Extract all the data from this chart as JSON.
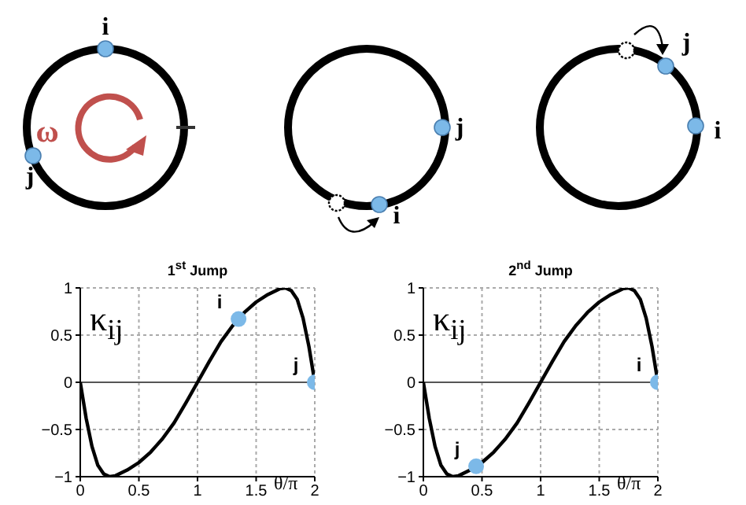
{
  "chart_data": [
    {
      "type": "other",
      "annotations": [
        "i",
        "j",
        "ω",
        "j",
        "i",
        "j",
        "i"
      ]
    },
    {
      "type": "line",
      "title": "1$^{st}$ Jump",
      "xlabel": "θ/π",
      "ylabel": "κ$_{ij}$",
      "xlim": [
        0,
        2
      ],
      "ylim": [
        -1,
        1
      ],
      "xticks": [
        0,
        0.5,
        1,
        1.5,
        2
      ],
      "yticks": [
        -1,
        -0.5,
        0,
        0.5,
        1
      ],
      "grid": true,
      "line_style": "solid",
      "ref_lines": [
        {
          "axis": "y",
          "value": 0,
          "color": "#555555"
        }
      ],
      "x": [
        0,
        0.05,
        0.1,
        0.15,
        0.2,
        0.25,
        0.3,
        0.4,
        0.5,
        0.6,
        0.65,
        0.7,
        0.8,
        0.9,
        1,
        1.1,
        1.2,
        1.3,
        1.35,
        1.4,
        1.5,
        1.6,
        1.7,
        1.75,
        1.8,
        1.85,
        1.9,
        1.95,
        2
      ],
      "series": [
        {
          "type": "line",
          "color": "#000000",
          "marker": "none",
          "values": [
            0,
            -0.38,
            -0.68,
            -0.88,
            -0.97,
            -1,
            -0.99,
            -0.93,
            -0.85,
            -0.74,
            -0.67,
            -0.6,
            -0.43,
            -0.22,
            0,
            0.22,
            0.43,
            0.6,
            0.67,
            0.74,
            0.85,
            0.93,
            0.99,
            1,
            0.97,
            0.88,
            0.68,
            0.38,
            0
          ]
        },
        {
          "type": "scatter",
          "name": "i",
          "color": "#7cb9e8",
          "marker": "circle",
          "x": [
            1.35
          ],
          "values": [
            0.67
          ]
        },
        {
          "type": "scatter",
          "name": "j",
          "color": "#7cb9e8",
          "marker": "circle",
          "x": [
            2
          ],
          "values": [
            0
          ]
        }
      ]
    },
    {
      "type": "line",
      "title": "2$^{nd}$ Jump",
      "xlabel": "θ/π",
      "ylabel": "κ$_{ij}$",
      "xlim": [
        0,
        2
      ],
      "ylim": [
        -1,
        1
      ],
      "xticks": [
        0,
        0.5,
        1,
        1.5,
        2
      ],
      "yticks": [
        -1,
        -0.5,
        0,
        0.5,
        1
      ],
      "grid": true,
      "line_style": "solid",
      "ref_lines": [
        {
          "axis": "y",
          "value": 0,
          "color": "#555555"
        }
      ],
      "x": [
        0,
        0.05,
        0.1,
        0.15,
        0.2,
        0.25,
        0.3,
        0.4,
        0.5,
        0.6,
        0.65,
        0.7,
        0.8,
        0.9,
        1,
        1.1,
        1.2,
        1.3,
        1.35,
        1.4,
        1.5,
        1.6,
        1.7,
        1.75,
        1.8,
        1.85,
        1.9,
        1.95,
        2
      ],
      "series": [
        {
          "type": "line",
          "color": "#000000",
          "marker": "none",
          "values": [
            0,
            -0.38,
            -0.68,
            -0.88,
            -0.97,
            -1,
            -0.99,
            -0.93,
            -0.85,
            -0.74,
            -0.67,
            -0.6,
            -0.43,
            -0.22,
            0,
            0.22,
            0.43,
            0.6,
            0.67,
            0.74,
            0.85,
            0.93,
            0.99,
            1,
            0.97,
            0.88,
            0.68,
            0.38,
            0
          ]
        },
        {
          "type": "scatter",
          "name": "j",
          "color": "#7cb9e8",
          "marker": "circle",
          "x": [
            0.45
          ],
          "values": [
            -0.89
          ]
        },
        {
          "type": "scatter",
          "name": "i",
          "color": "#7cb9e8",
          "marker": "circle",
          "x": [
            2
          ],
          "values": [
            0
          ]
        }
      ]
    }
  ]
}
